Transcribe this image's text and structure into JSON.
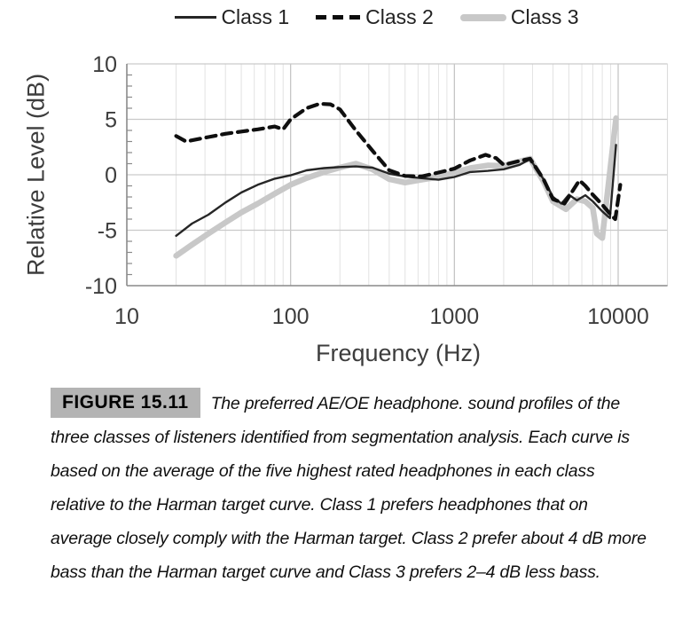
{
  "chart_data": {
    "type": "line",
    "title": "",
    "xlabel": "Frequency (Hz)",
    "ylabel": "Relative Level (dB)",
    "x_scale": "log",
    "xlim": [
      10,
      20000
    ],
    "ylim": [
      -10,
      10
    ],
    "x_tick_values": [
      10,
      100,
      1000,
      10000
    ],
    "x_tick_labels": [
      "10",
      "100",
      "1000",
      "10000"
    ],
    "y_tick_values": [
      10,
      5,
      0,
      -5,
      -10
    ],
    "y_tick_labels": [
      "10",
      "5",
      "0",
      "-5",
      "-10"
    ],
    "grid": true,
    "legend_position": "top",
    "series": [
      {
        "name": "Class 1",
        "style": "solid",
        "color": "#262626",
        "width": 2.4,
        "points": [
          [
            20,
            -5.5
          ],
          [
            25,
            -4.4
          ],
          [
            31.5,
            -3.6
          ],
          [
            40,
            -2.5
          ],
          [
            50,
            -1.6
          ],
          [
            63,
            -0.9
          ],
          [
            80,
            -0.35
          ],
          [
            100,
            -0.05
          ],
          [
            125,
            0.4
          ],
          [
            160,
            0.6
          ],
          [
            200,
            0.7
          ],
          [
            250,
            0.75
          ],
          [
            315,
            0.65
          ],
          [
            400,
            0.1
          ],
          [
            500,
            -0.15
          ],
          [
            630,
            -0.3
          ],
          [
            800,
            -0.45
          ],
          [
            1000,
            -0.2
          ],
          [
            1250,
            0.25
          ],
          [
            1600,
            0.35
          ],
          [
            2000,
            0.5
          ],
          [
            2500,
            0.9
          ],
          [
            2900,
            1.4
          ],
          [
            3500,
            -0.4
          ],
          [
            4000,
            -2.0
          ],
          [
            4500,
            -2.6
          ],
          [
            5000,
            -1.8
          ],
          [
            5600,
            -2.3
          ],
          [
            6300,
            -1.85
          ],
          [
            7000,
            -2.4
          ],
          [
            8000,
            -3.3
          ],
          [
            8900,
            -3.9
          ],
          [
            9700,
            2.7
          ]
        ]
      },
      {
        "name": "Class 2",
        "style": "dashed",
        "color": "#0f0f0f",
        "width": 4.2,
        "points": [
          [
            20,
            3.5
          ],
          [
            23,
            3.0
          ],
          [
            31.5,
            3.4
          ],
          [
            40,
            3.7
          ],
          [
            50,
            3.9
          ],
          [
            63,
            4.1
          ],
          [
            80,
            4.35
          ],
          [
            90,
            4.1
          ],
          [
            100,
            5.0
          ],
          [
            125,
            6.0
          ],
          [
            150,
            6.4
          ],
          [
            175,
            6.35
          ],
          [
            200,
            5.9
          ],
          [
            250,
            4.0
          ],
          [
            315,
            2.2
          ],
          [
            400,
            0.4
          ],
          [
            500,
            -0.1
          ],
          [
            630,
            -0.15
          ],
          [
            800,
            0.2
          ],
          [
            1000,
            0.55
          ],
          [
            1250,
            1.3
          ],
          [
            1550,
            1.8
          ],
          [
            1800,
            1.5
          ],
          [
            2000,
            0.9
          ],
          [
            2500,
            1.25
          ],
          [
            2900,
            1.45
          ],
          [
            3500,
            -0.4
          ],
          [
            4000,
            -2.2
          ],
          [
            4700,
            -2.6
          ],
          [
            5800,
            -0.5
          ],
          [
            6300,
            -1.0
          ],
          [
            7000,
            -1.8
          ],
          [
            8000,
            -2.7
          ],
          [
            9000,
            -3.6
          ],
          [
            9600,
            -4.0
          ],
          [
            10300,
            -0.9
          ]
        ]
      },
      {
        "name": "Class 3",
        "style": "solid",
        "color": "#c8c8c8",
        "width": 6.5,
        "points": [
          [
            20,
            -7.3
          ],
          [
            25,
            -6.3
          ],
          [
            31.5,
            -5.3
          ],
          [
            40,
            -4.3
          ],
          [
            50,
            -3.4
          ],
          [
            63,
            -2.6
          ],
          [
            80,
            -1.7
          ],
          [
            100,
            -0.9
          ],
          [
            125,
            -0.3
          ],
          [
            160,
            0.25
          ],
          [
            200,
            0.65
          ],
          [
            250,
            1.0
          ],
          [
            315,
            0.5
          ],
          [
            400,
            -0.4
          ],
          [
            500,
            -0.7
          ],
          [
            630,
            -0.45
          ],
          [
            800,
            -0.2
          ],
          [
            1000,
            0.2
          ],
          [
            1250,
            0.6
          ],
          [
            1600,
            0.85
          ],
          [
            2000,
            0.8
          ],
          [
            2500,
            1.2
          ],
          [
            2900,
            1.45
          ],
          [
            3500,
            -0.6
          ],
          [
            4000,
            -2.4
          ],
          [
            4800,
            -3.1
          ],
          [
            5600,
            -2.2
          ],
          [
            6300,
            -2.4
          ],
          [
            7000,
            -3.0
          ],
          [
            7400,
            -5.3
          ],
          [
            8000,
            -5.7
          ],
          [
            9700,
            5.1
          ]
        ]
      }
    ]
  },
  "caption": {
    "label": "FIGURE 15.11",
    "text": "The preferred AE/OE headphone. sound profiles of the three classes of listeners identified from segmentation analysis. Each curve is based on the average of the five highest rated headphones in each class relative to the Harman target curve. Class 1 prefers headphones that on average closely comply with the Harman target. Class 2 prefer about 4 dB more bass than the Harman target curve and Class 3 prefers 2–4 dB less bass."
  },
  "colors": {
    "class1_line": "#262626",
    "class2_line": "#0f0f0f",
    "class3_line": "#c8c8c8",
    "grid_minor": "#e2e2e2",
    "grid_major": "#c6c6c6",
    "axis_line": "#8a8a8a",
    "badge_background": "#b4b4b4"
  }
}
